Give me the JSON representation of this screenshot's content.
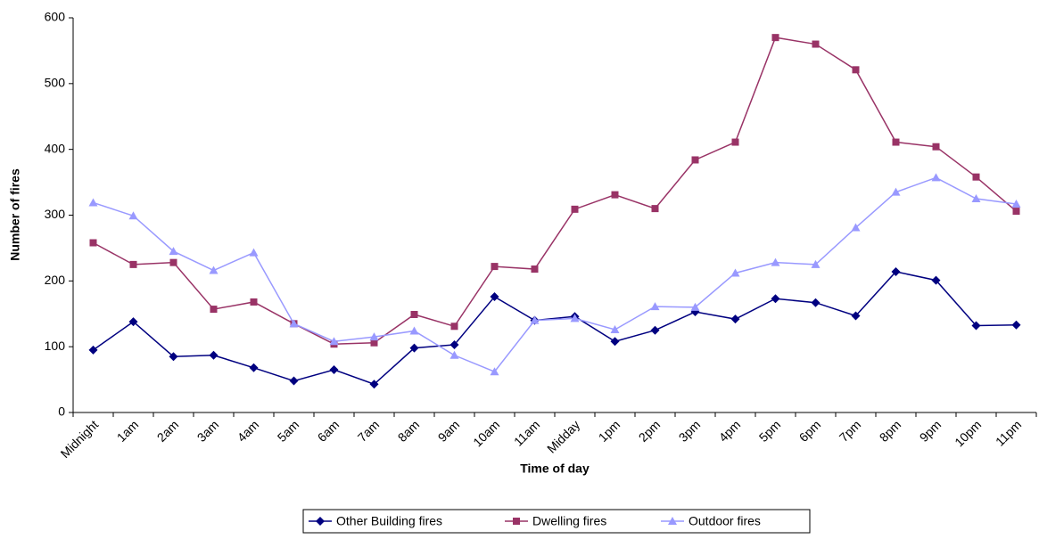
{
  "chart_data": {
    "type": "line",
    "x_label": "Time of day",
    "y_label": "Number of fires",
    "categories": [
      "Midnight",
      "1am",
      "2am",
      "3am",
      "4am",
      "5am",
      "6am",
      "7am",
      "8am",
      "9am",
      "10am",
      "11am",
      "Midday",
      "1pm",
      "2pm",
      "3pm",
      "4pm",
      "5pm",
      "6pm",
      "7pm",
      "8pm",
      "9pm",
      "10pm",
      "11pm"
    ],
    "series": [
      {
        "name": "Other Building fires",
        "color": "#000080",
        "marker": "diamond",
        "values": [
          95,
          138,
          85,
          87,
          68,
          48,
          65,
          43,
          98,
          103,
          176,
          140,
          146,
          108,
          125,
          153,
          142,
          173,
          167,
          147,
          214,
          201,
          132,
          133
        ]
      },
      {
        "name": "Dwelling fires",
        "color": "#993366",
        "marker": "square",
        "values": [
          258,
          225,
          228,
          157,
          168,
          135,
          104,
          106,
          149,
          131,
          222,
          218,
          309,
          331,
          310,
          384,
          411,
          570,
          560,
          521,
          411,
          404,
          358,
          306
        ]
      },
      {
        "name": "Outdoor fires",
        "color": "#9999ff",
        "marker": "triangle",
        "values": [
          319,
          299,
          245,
          216,
          243,
          135,
          108,
          115,
          124,
          87,
          62,
          140,
          143,
          126,
          161,
          160,
          212,
          228,
          225,
          281,
          335,
          357,
          325,
          317
        ]
      }
    ],
    "ylim": [
      0,
      600
    ],
    "yticks": [
      0,
      100,
      200,
      300,
      400,
      500,
      600
    ],
    "grid": false,
    "legend": "bottom"
  }
}
